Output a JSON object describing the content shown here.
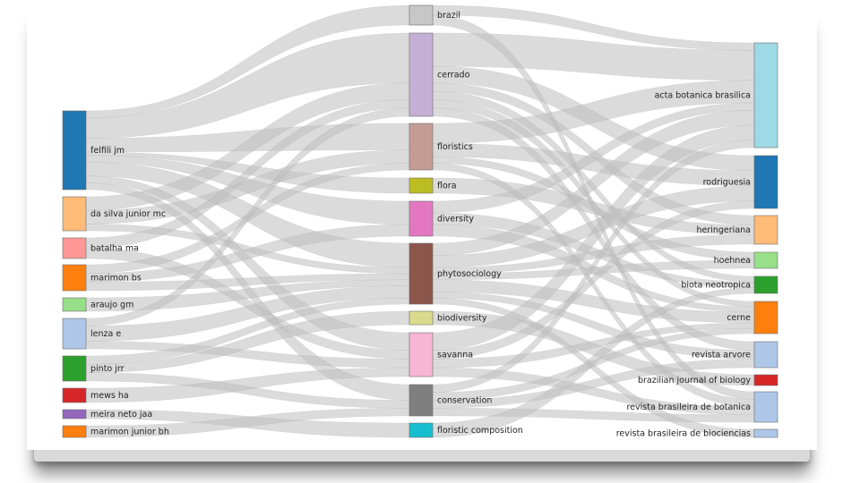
{
  "chart_data": {
    "type": "sankey",
    "title": "",
    "columns": [
      {
        "name": "",
        "nodes": [
          {
            "label": "felfili jm",
            "color": "#1f77b4"
          },
          {
            "label": "da silva junior mc",
            "color": "#ffbb78"
          },
          {
            "label": "batalha ma",
            "color": "#ff9896"
          },
          {
            "label": "marimon bs",
            "color": "#ff7f0e"
          },
          {
            "label": "araujo gm",
            "color": "#98df8a"
          },
          {
            "label": "lenza e",
            "color": "#aec7e8"
          },
          {
            "label": "pinto jrr",
            "color": "#2ca02c"
          },
          {
            "label": "mews ha",
            "color": "#d62728"
          },
          {
            "label": "meira neto jaa",
            "color": "#9467bd"
          },
          {
            "label": "marimon junior bh",
            "color": "#ff7f0e"
          }
        ]
      },
      {
        "name": "",
        "nodes": [
          {
            "label": "brazil",
            "color": "#c7c7c7"
          },
          {
            "label": "cerrado",
            "color": "#c5b0d5"
          },
          {
            "label": "floristics",
            "color": "#c49c94"
          },
          {
            "label": "flora",
            "color": "#bcbd22"
          },
          {
            "label": "diversity",
            "color": "#e377c2"
          },
          {
            "label": "phytosociology",
            "color": "#8c564b"
          },
          {
            "label": "biodiversity",
            "color": "#dbdb8d"
          },
          {
            "label": "savanna",
            "color": "#f7b6d2"
          },
          {
            "label": "conservation",
            "color": "#7f7f7f"
          },
          {
            "label": "floristic composition",
            "color": "#17becf"
          }
        ]
      },
      {
        "name": "",
        "nodes": [
          {
            "label": "acta botanica brasilica",
            "color": "#9edae5"
          },
          {
            "label": "rodriguesia",
            "color": "#1f77b4"
          },
          {
            "label": "heringeriana",
            "color": "#ffbb78"
          },
          {
            "label": "hoehnea",
            "color": "#98df8a"
          },
          {
            "label": "biota neotropica",
            "color": "#2ca02c"
          },
          {
            "label": "cerne",
            "color": "#ff7f0e"
          },
          {
            "label": "revista arvore",
            "color": "#aec7e8"
          },
          {
            "label": "brazilian journal of biology",
            "color": "#d62728"
          },
          {
            "label": "revista brasileira de botanica",
            "color": "#aec7e8"
          },
          {
            "label": "revista brasileira de biociencias",
            "color": "#aec7e8"
          }
        ]
      }
    ],
    "link_color": "#bdbdbd",
    "links": [
      {
        "source": "felfili jm",
        "target": "brazil",
        "value": 2
      },
      {
        "source": "felfili jm",
        "target": "cerrado",
        "value": 6
      },
      {
        "source": "felfili jm",
        "target": "floristics",
        "value": 4
      },
      {
        "source": "felfili jm",
        "target": "diversity",
        "value": 2
      },
      {
        "source": "felfili jm",
        "target": "phytosociology",
        "value": 4
      },
      {
        "source": "felfili jm",
        "target": "conservation",
        "value": 2
      },
      {
        "source": "felfili jm",
        "target": "savanna",
        "value": 2
      },
      {
        "source": "felfili jm",
        "target": "flora",
        "value": 1
      },
      {
        "source": "da silva junior mc",
        "target": "cerrado",
        "value": 2
      },
      {
        "source": "da silva junior mc",
        "target": "floristics",
        "value": 2
      },
      {
        "source": "da silva junior mc",
        "target": "phytosociology",
        "value": 1
      },
      {
        "source": "batalha ma",
        "target": "cerrado",
        "value": 1
      },
      {
        "source": "batalha ma",
        "target": "savanna",
        "value": 1
      },
      {
        "source": "marimon bs",
        "target": "phytosociology",
        "value": 1
      },
      {
        "source": "marimon bs",
        "target": "diversity",
        "value": 1
      },
      {
        "source": "marimon bs",
        "target": "floristics",
        "value": 1
      },
      {
        "source": "araujo gm",
        "target": "phytosociology",
        "value": 1
      },
      {
        "source": "lenza e",
        "target": "savanna",
        "value": 1
      },
      {
        "source": "lenza e",
        "target": "phytosociology",
        "value": 2
      },
      {
        "source": "lenza e",
        "target": "cerrado",
        "value": 1
      },
      {
        "source": "pinto jrr",
        "target": "phytosociology",
        "value": 1
      },
      {
        "source": "pinto jrr",
        "target": "conservation",
        "value": 1
      },
      {
        "source": "pinto jrr",
        "target": "biodiversity",
        "value": 1
      },
      {
        "source": "mews ha",
        "target": "savanna",
        "value": 1
      },
      {
        "source": "meira neto jaa",
        "target": "floristic composition",
        "value": 1
      },
      {
        "source": "marimon junior bh",
        "target": "conservation",
        "value": 1
      },
      {
        "source": "brazil",
        "target": "acta botanica brasilica",
        "value": 1
      },
      {
        "source": "brazil",
        "target": "revista brasileira de botanica",
        "value": 1
      },
      {
        "source": "cerrado",
        "target": "acta botanica brasilica",
        "value": 4
      },
      {
        "source": "cerrado",
        "target": "rodriguesia",
        "value": 2
      },
      {
        "source": "cerrado",
        "target": "cerne",
        "value": 1
      },
      {
        "source": "cerrado",
        "target": "heringeriana",
        "value": 1
      },
      {
        "source": "cerrado",
        "target": "revista arvore",
        "value": 1
      },
      {
        "source": "cerrado",
        "target": "biota neotropica",
        "value": 1
      },
      {
        "source": "floristics",
        "target": "acta botanica brasilica",
        "value": 3
      },
      {
        "source": "floristics",
        "target": "rodriguesia",
        "value": 2
      },
      {
        "source": "floristics",
        "target": "hoehnea",
        "value": 1
      },
      {
        "source": "floristics",
        "target": "revista brasileira de botanica",
        "value": 1
      },
      {
        "source": "flora",
        "target": "heringeriana",
        "value": 1
      },
      {
        "source": "diversity",
        "target": "acta botanica brasilica",
        "value": 1
      },
      {
        "source": "diversity",
        "target": "cerne",
        "value": 1
      },
      {
        "source": "diversity",
        "target": "biota neotropica",
        "value": 1
      },
      {
        "source": "phytosociology",
        "target": "acta botanica brasilica",
        "value": 2
      },
      {
        "source": "phytosociology",
        "target": "rodriguesia",
        "value": 2
      },
      {
        "source": "phytosociology",
        "target": "cerne",
        "value": 2
      },
      {
        "source": "phytosociology",
        "target": "revista arvore",
        "value": 1
      },
      {
        "source": "phytosociology",
        "target": "heringeriana",
        "value": 1
      },
      {
        "source": "phytosociology",
        "target": "revista brasileira de biociencias",
        "value": 1
      },
      {
        "source": "phytosociology",
        "target": "hoehnea",
        "value": 1
      },
      {
        "source": "biodiversity",
        "target": "brazilian journal of biology",
        "value": 1
      },
      {
        "source": "savanna",
        "target": "acta botanica brasilica",
        "value": 2
      },
      {
        "source": "savanna",
        "target": "rodriguesia",
        "value": 1
      },
      {
        "source": "savanna",
        "target": "cerne",
        "value": 1
      },
      {
        "source": "savanna",
        "target": "revista brasileira de botanica",
        "value": 1
      },
      {
        "source": "conservation",
        "target": "acta botanica brasilica",
        "value": 1
      },
      {
        "source": "conservation",
        "target": "revista arvore",
        "value": 1
      },
      {
        "source": "conservation",
        "target": "revista brasileira de botanica",
        "value": 1
      },
      {
        "source": "conservation",
        "target": "cerne",
        "value": 1
      },
      {
        "source": "floristic composition",
        "target": "biota neotropica",
        "value": 1
      }
    ]
  }
}
